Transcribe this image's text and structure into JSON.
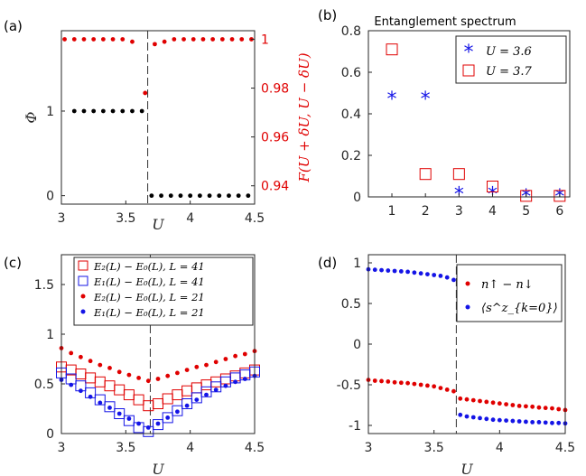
{
  "colors": {
    "black": "#000000",
    "red": "#e00000",
    "blue": "#1414e6",
    "axis": "#262626"
  },
  "chart_data": [
    {
      "panel_label": "(a)",
      "type": "scatter",
      "xlabel": "U",
      "ylabel": "Φ",
      "ylabel_right": "F(U + δU, U − δU)",
      "xlim": [
        3,
        4.5
      ],
      "ylim": [
        -0.1,
        1.95
      ],
      "ylim_right": [
        0.9325,
        1.0035
      ],
      "xticks": [
        3,
        3.5,
        4,
        4.5
      ],
      "xtick_labels": [
        "3",
        "3.5",
        "4",
        "4.5"
      ],
      "yticks": [
        0,
        1
      ],
      "ytick_labels": [
        "0",
        "1"
      ],
      "yticks_right": [
        0.94,
        0.96,
        0.98,
        1
      ],
      "ytick_labels_right": [
        "0.94",
        "0.96",
        "0.98",
        "1"
      ],
      "transition_line": 3.67,
      "series": [
        {
          "axis": "left",
          "color": "#000000",
          "marker": "dot",
          "x": [
            3.1,
            3.175,
            3.25,
            3.325,
            3.4,
            3.475,
            3.55,
            3.625,
            3.7,
            3.775,
            3.85,
            3.925,
            4.0,
            4.075,
            4.15,
            4.225,
            4.3,
            4.375,
            4.45
          ],
          "y": [
            1,
            1,
            1,
            1,
            1,
            1,
            1,
            1,
            0,
            0,
            0,
            0,
            0,
            0,
            0,
            0,
            0,
            0,
            0
          ]
        },
        {
          "axis": "right",
          "color": "#e00000",
          "marker": "dot",
          "x": [
            3.025,
            3.1,
            3.175,
            3.25,
            3.325,
            3.4,
            3.475,
            3.55,
            3.65,
            3.725,
            3.8,
            3.875,
            3.95,
            4.025,
            4.1,
            4.175,
            4.25,
            4.325,
            4.4,
            4.475
          ],
          "y": [
            1,
            1,
            1,
            1,
            1,
            1,
            1,
            0.999,
            0.978,
            0.998,
            0.999,
            1,
            1,
            1,
            1,
            1,
            1,
            1,
            1,
            1
          ]
        }
      ]
    },
    {
      "panel_label": "(b)",
      "type": "scatter",
      "title": "Entanglement spectrum",
      "xlim": [
        0.3,
        6.3
      ],
      "ylim": [
        0,
        0.8
      ],
      "xticks": [
        1,
        2,
        3,
        4,
        5,
        6
      ],
      "xtick_labels": [
        "1",
        "2",
        "3",
        "4",
        "5",
        "6"
      ],
      "yticks": [
        0,
        0.2,
        0.4,
        0.6,
        0.8
      ],
      "ytick_labels": [
        "0",
        "0.2",
        "0.4",
        "0.6",
        "0.8"
      ],
      "legend_position": "top-right",
      "series": [
        {
          "name": "U = 3.6",
          "color": "#1414e6",
          "marker": "star",
          "x": [
            1,
            2,
            3,
            4,
            5,
            6
          ],
          "y": [
            0.475,
            0.475,
            0.015,
            0.015,
            0.004,
            0.004
          ]
        },
        {
          "name": "U = 3.7",
          "color": "#e00000",
          "marker": "square",
          "x": [
            1,
            2,
            3,
            4,
            5,
            6
          ],
          "y": [
            0.71,
            0.11,
            0.11,
            0.05,
            0.005,
            0.005
          ]
        }
      ]
    },
    {
      "panel_label": "(c)",
      "type": "scatter",
      "xlabel": "U",
      "xlim": [
        3,
        4.5
      ],
      "ylim": [
        0,
        1.8
      ],
      "xticks": [
        3,
        3.5,
        4,
        4.5
      ],
      "xtick_labels": [
        "3",
        "3.5",
        "4",
        "4.5"
      ],
      "yticks": [
        0,
        0.5,
        1,
        1.5
      ],
      "ytick_labels": [
        "0",
        "0.5",
        "1",
        "1.5"
      ],
      "transition_line": 3.69,
      "legend_position": "top-right",
      "series": [
        {
          "name": "E₂(L) − E₀(L), L = 41",
          "color": "#e00000",
          "marker": "square",
          "x": [
            3,
            3.075,
            3.15,
            3.225,
            3.3,
            3.375,
            3.45,
            3.525,
            3.6,
            3.675,
            3.75,
            3.825,
            3.9,
            3.975,
            4.05,
            4.125,
            4.2,
            4.275,
            4.35,
            4.425,
            4.5
          ],
          "y": [
            0.67,
            0.64,
            0.6,
            0.56,
            0.52,
            0.48,
            0.44,
            0.39,
            0.34,
            0.28,
            0.3,
            0.35,
            0.39,
            0.43,
            0.46,
            0.49,
            0.52,
            0.55,
            0.58,
            0.61,
            0.64
          ]
        },
        {
          "name": "E₁(L) − E₀(L), L = 41",
          "color": "#1414e6",
          "marker": "square",
          "x": [
            3,
            3.075,
            3.15,
            3.225,
            3.3,
            3.375,
            3.45,
            3.525,
            3.6,
            3.675,
            3.75,
            3.825,
            3.9,
            3.975,
            4.05,
            4.125,
            4.2,
            4.275,
            4.35,
            4.425,
            4.5
          ],
          "y": [
            0.61,
            0.55,
            0.48,
            0.41,
            0.34,
            0.27,
            0.2,
            0.13,
            0.06,
            0.02,
            0.09,
            0.16,
            0.23,
            0.3,
            0.36,
            0.42,
            0.47,
            0.52,
            0.56,
            0.59,
            0.62
          ]
        },
        {
          "name": "E₂(L) − E₀(L), L = 21",
          "color": "#e00000",
          "marker": "dot",
          "x": [
            3,
            3.075,
            3.15,
            3.225,
            3.3,
            3.375,
            3.45,
            3.525,
            3.6,
            3.675,
            3.75,
            3.825,
            3.9,
            3.975,
            4.05,
            4.125,
            4.2,
            4.275,
            4.35,
            4.425,
            4.5
          ],
          "y": [
            0.86,
            0.81,
            0.77,
            0.73,
            0.69,
            0.66,
            0.62,
            0.59,
            0.56,
            0.53,
            0.55,
            0.58,
            0.61,
            0.64,
            0.67,
            0.69,
            0.72,
            0.75,
            0.78,
            0.8,
            0.83
          ]
        },
        {
          "name": "E₁(L) − E₀(L), L = 21",
          "color": "#1414e6",
          "marker": "dot",
          "x": [
            3,
            3.075,
            3.15,
            3.225,
            3.3,
            3.375,
            3.45,
            3.525,
            3.6,
            3.675,
            3.75,
            3.825,
            3.9,
            3.975,
            4.05,
            4.125,
            4.2,
            4.275,
            4.35,
            4.425,
            4.5
          ],
          "y": [
            0.54,
            0.49,
            0.43,
            0.37,
            0.31,
            0.26,
            0.2,
            0.15,
            0.1,
            0.06,
            0.1,
            0.16,
            0.22,
            0.28,
            0.34,
            0.39,
            0.44,
            0.48,
            0.52,
            0.55,
            0.58
          ]
        }
      ]
    },
    {
      "panel_label": "(d)",
      "type": "scatter",
      "xlabel": "U",
      "xlim": [
        3,
        4.5
      ],
      "ylim": [
        -1.1,
        1.1
      ],
      "xticks": [
        3,
        3.5,
        4,
        4.5
      ],
      "xtick_labels": [
        "3",
        "3.5",
        "4",
        "4.5"
      ],
      "yticks": [
        -1,
        -0.5,
        0,
        0.5,
        1
      ],
      "ytick_labels": [
        "-1",
        "-0.5",
        "0",
        "0.5",
        "1"
      ],
      "transition_line": 3.67,
      "legend_position": "top-right",
      "series": [
        {
          "name": "n↑ − n↓",
          "color": "#e00000",
          "marker": "dot",
          "x": [
            3,
            3.05,
            3.1,
            3.15,
            3.2,
            3.25,
            3.3,
            3.35,
            3.4,
            3.45,
            3.5,
            3.55,
            3.6,
            3.65,
            3.7,
            3.75,
            3.8,
            3.85,
            3.9,
            3.95,
            4.0,
            4.05,
            4.1,
            4.15,
            4.2,
            4.25,
            4.3,
            4.35,
            4.4,
            4.45,
            4.5
          ],
          "y": [
            -0.44,
            -0.45,
            -0.455,
            -0.46,
            -0.47,
            -0.475,
            -0.48,
            -0.49,
            -0.5,
            -0.51,
            -0.52,
            -0.54,
            -0.56,
            -0.58,
            -0.67,
            -0.68,
            -0.69,
            -0.7,
            -0.71,
            -0.72,
            -0.73,
            -0.74,
            -0.75,
            -0.76,
            -0.765,
            -0.77,
            -0.78,
            -0.785,
            -0.79,
            -0.8,
            -0.81
          ]
        },
        {
          "name": "⟨s^z_{k=0}⟩",
          "color": "#1414e6",
          "marker": "dot",
          "x": [
            3,
            3.05,
            3.1,
            3.15,
            3.2,
            3.25,
            3.3,
            3.35,
            3.4,
            3.45,
            3.5,
            3.55,
            3.6,
            3.65,
            3.7,
            3.75,
            3.8,
            3.85,
            3.9,
            3.95,
            4.0,
            4.05,
            4.1,
            4.15,
            4.2,
            4.25,
            4.3,
            4.35,
            4.4,
            4.45,
            4.5
          ],
          "y": [
            0.92,
            0.915,
            0.91,
            0.905,
            0.9,
            0.895,
            0.89,
            0.88,
            0.87,
            0.86,
            0.85,
            0.84,
            0.82,
            0.79,
            -0.87,
            -0.89,
            -0.9,
            -0.91,
            -0.92,
            -0.93,
            -0.935,
            -0.94,
            -0.945,
            -0.95,
            -0.955,
            -0.96,
            -0.96,
            -0.965,
            -0.97,
            -0.97,
            -0.975
          ]
        }
      ]
    }
  ]
}
